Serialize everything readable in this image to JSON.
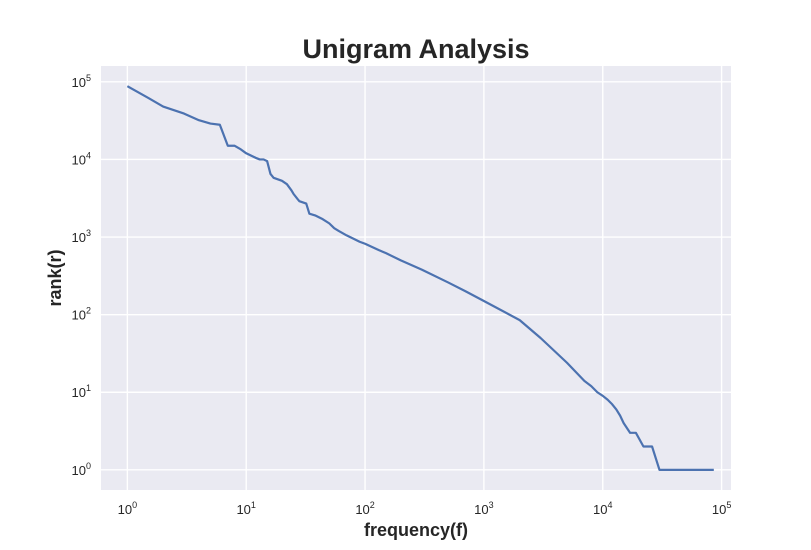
{
  "chart_data": {
    "type": "line",
    "title": "Unigram Analysis",
    "xlabel": "frequency(f)",
    "ylabel": "rank(r)",
    "xscale": "log",
    "yscale": "log",
    "xlim": [
      0.6,
      120000
    ],
    "ylim": [
      0.55,
      160000
    ],
    "grid": true,
    "x_ticks": [
      {
        "base": "10",
        "exp": "0",
        "value": 1
      },
      {
        "base": "10",
        "exp": "1",
        "value": 10
      },
      {
        "base": "10",
        "exp": "2",
        "value": 100
      },
      {
        "base": "10",
        "exp": "3",
        "value": 1000
      },
      {
        "base": "10",
        "exp": "4",
        "value": 10000
      },
      {
        "base": "10",
        "exp": "5",
        "value": 100000
      }
    ],
    "y_ticks": [
      {
        "base": "10",
        "exp": "0",
        "value": 1
      },
      {
        "base": "10",
        "exp": "1",
        "value": 10
      },
      {
        "base": "10",
        "exp": "2",
        "value": 100
      },
      {
        "base": "10",
        "exp": "3",
        "value": 1000
      },
      {
        "base": "10",
        "exp": "4",
        "value": 10000
      },
      {
        "base": "10",
        "exp": "5",
        "value": 100000
      }
    ],
    "series": [
      {
        "color": "#4c72b0",
        "x": [
          1,
          1.5,
          2,
          3,
          4,
          5,
          6,
          7,
          8,
          9,
          10,
          12,
          13,
          14,
          15,
          16,
          17,
          20,
          22,
          24,
          25,
          27,
          28,
          32,
          34,
          38,
          44,
          50,
          55,
          60,
          70,
          80,
          90,
          100,
          130,
          150,
          200,
          300,
          500,
          700,
          1000,
          2000,
          3000,
          5000,
          7000,
          8000,
          9000,
          10000,
          11000,
          12000,
          13000,
          14000,
          15000,
          17000,
          19000,
          22000,
          26000,
          30000,
          35000,
          42000,
          86000
        ],
        "y": [
          88000,
          62000,
          48000,
          39000,
          32000,
          29000,
          28000,
          15000,
          15000,
          13500,
          12000,
          10500,
          10000,
          10000,
          9500,
          6500,
          5800,
          5300,
          4800,
          4000,
          3600,
          3100,
          2900,
          2700,
          2000,
          1900,
          1700,
          1500,
          1300,
          1200,
          1050,
          950,
          870,
          820,
          680,
          620,
          500,
          380,
          260,
          200,
          150,
          85,
          50,
          24,
          14,
          12,
          10,
          9,
          8,
          7,
          6,
          5,
          4,
          3,
          3,
          2,
          2,
          1,
          1,
          1,
          1
        ]
      }
    ]
  }
}
